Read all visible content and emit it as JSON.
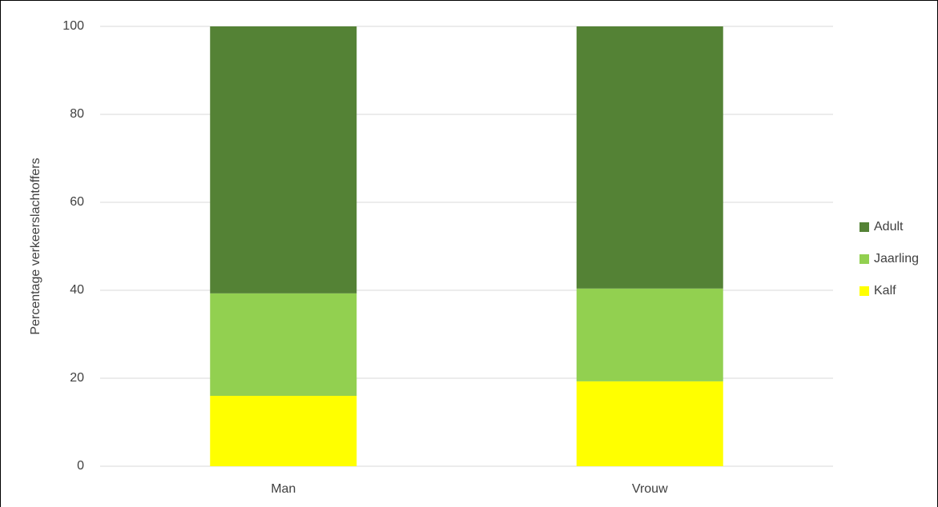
{
  "chart_data": {
    "type": "stacked_bar",
    "y_label": "Percentage verkeerslachtoffers",
    "categories": [
      "Man",
      "Vrouw"
    ],
    "series": [
      {
        "name": "Kalf",
        "color": "#ffff00",
        "values": [
          16,
          19.3
        ]
      },
      {
        "name": "Jaarling",
        "color": "#92d050",
        "values": [
          23.3,
          21.1
        ]
      },
      {
        "name": "Adult",
        "color": "#548235",
        "values": [
          60.7,
          59.6
        ]
      }
    ],
    "ylim": [
      0,
      100
    ],
    "yticks": [
      0,
      20,
      40,
      60,
      80,
      100
    ],
    "grid": true,
    "legend": "right"
  }
}
